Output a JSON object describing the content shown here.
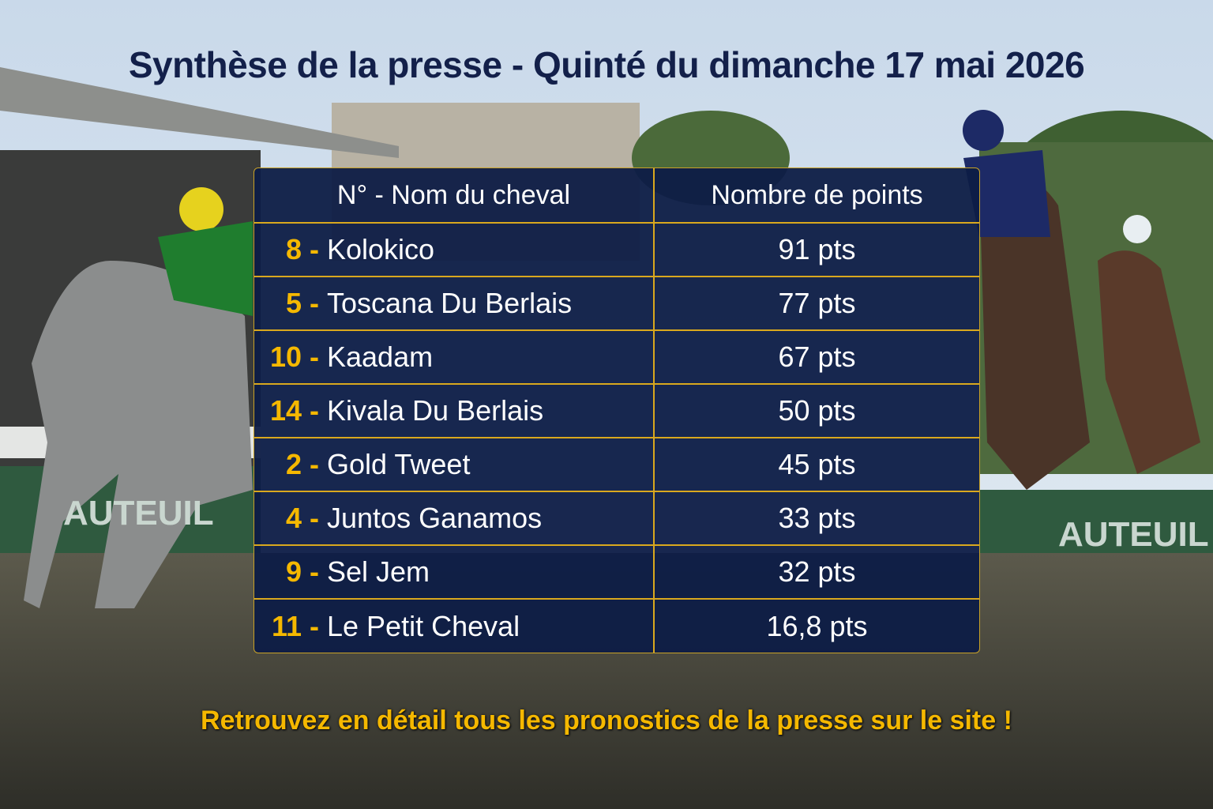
{
  "header": {
    "title": "Synthèse de la presse - Quinté du dimanche 17 mai 2026"
  },
  "table": {
    "columns": [
      "N° - Nom du cheval",
      "Nombre de points"
    ],
    "rows": [
      {
        "num": "8 -",
        "name": "Kolokico",
        "points": "91 pts"
      },
      {
        "num": "5 -",
        "name": "Toscana Du Berlais",
        "points": "77 pts"
      },
      {
        "num": "10 -",
        "name": "Kaadam",
        "points": "67 pts"
      },
      {
        "num": "14 -",
        "name": "Kivala Du Berlais",
        "points": "50 pts"
      },
      {
        "num": "2 -",
        "name": "Gold Tweet",
        "points": "45 pts"
      },
      {
        "num": "4 -",
        "name": "Juntos Ganamos",
        "points": "33 pts"
      },
      {
        "num": "9 -",
        "name": "Sel Jem",
        "points": "32 pts"
      },
      {
        "num": "11 -",
        "name": "Le Petit Cheval",
        "points": "16,8 pts"
      }
    ]
  },
  "background": {
    "signs": [
      "AUTEUIL",
      "AUTEUIL"
    ]
  },
  "footer": {
    "text": "Retrouvez en détail tous les pronostics de la presse sur le site !"
  }
}
